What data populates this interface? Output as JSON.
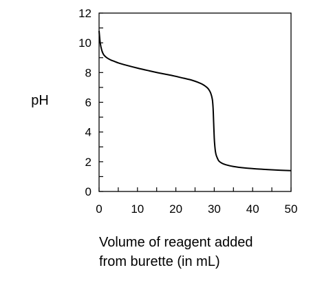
{
  "chart_data": {
    "type": "line",
    "title": "",
    "xlabel_lines": [
      "Volume of reagent added",
      "from burette (in mL)"
    ],
    "ylabel": "pH",
    "xlim": [
      0,
      50
    ],
    "ylim": [
      0,
      12
    ],
    "x_ticks": [
      0,
      10,
      20,
      30,
      40,
      50
    ],
    "y_ticks": [
      0,
      2,
      4,
      6,
      8,
      10,
      12
    ],
    "x_minor_step": 5,
    "y_minor_step": 1,
    "grid": false,
    "legend": "none",
    "line_color": "#000000",
    "series": [
      {
        "x": [
          0,
          0.3,
          0.7,
          1.2,
          2,
          3,
          4,
          5,
          7,
          10,
          13,
          16,
          19,
          22,
          24,
          26,
          27,
          28,
          28.6,
          29.1,
          29.5,
          29.7,
          29.85,
          30,
          30.15,
          30.3,
          30.5,
          30.8,
          31.2,
          32,
          33,
          35,
          38,
          41,
          44,
          47,
          50
        ],
        "y": [
          10.8,
          10.0,
          9.5,
          9.2,
          9.0,
          8.85,
          8.75,
          8.65,
          8.5,
          8.3,
          8.12,
          7.95,
          7.8,
          7.62,
          7.5,
          7.32,
          7.2,
          7.02,
          6.85,
          6.6,
          6.2,
          5.6,
          4.6,
          3.6,
          3.05,
          2.7,
          2.45,
          2.25,
          2.05,
          1.9,
          1.8,
          1.68,
          1.58,
          1.52,
          1.47,
          1.43,
          1.4
        ]
      }
    ]
  }
}
